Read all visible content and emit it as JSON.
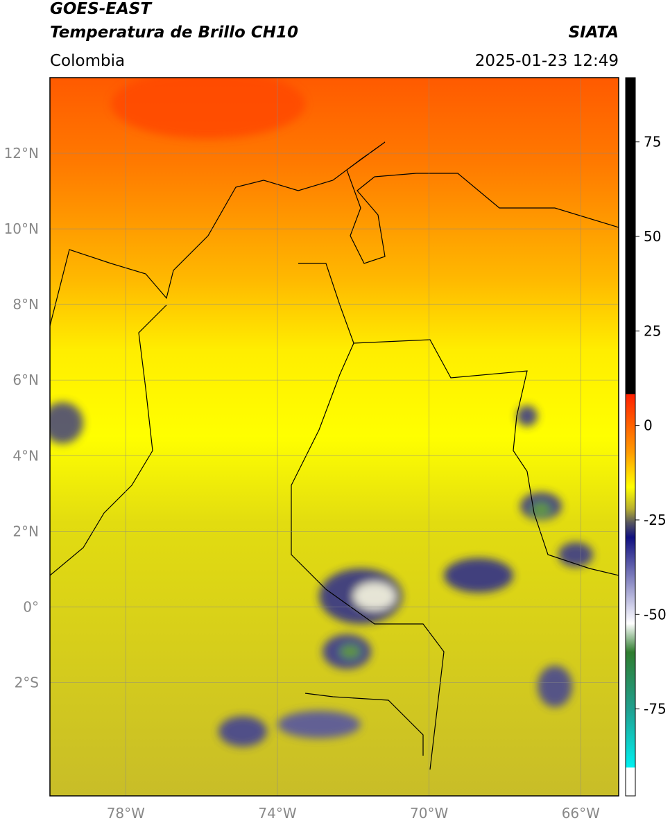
{
  "header": {
    "title": "GOES-EAST",
    "subtitle": "Temperatura de Brillo CH10",
    "source": "SIATA",
    "region": "Colombia",
    "datetime": "2025-01-23 12:49"
  },
  "map": {
    "lonlim": [
      -80,
      -65
    ],
    "latlim": [
      -5,
      14
    ],
    "lat_ticks": [
      {
        "value": 12,
        "label": "12°N"
      },
      {
        "value": 10,
        "label": "10°N"
      },
      {
        "value": 8,
        "label": "8°N"
      },
      {
        "value": 6,
        "label": "6°N"
      },
      {
        "value": 4,
        "label": "4°N"
      },
      {
        "value": 2,
        "label": "2°N"
      },
      {
        "value": 0,
        "label": "0°"
      },
      {
        "value": -2,
        "label": "2°S"
      }
    ],
    "lon_ticks": [
      {
        "value": -78,
        "label": "78°W"
      },
      {
        "value": -74,
        "label": "74°W"
      },
      {
        "value": -70,
        "label": "70°W"
      },
      {
        "value": -66,
        "label": "66°W"
      }
    ]
  },
  "colorbar": {
    "lim": [
      -98,
      92
    ],
    "ticks": [
      75,
      50,
      25,
      0,
      -25,
      -50,
      -75
    ]
  }
}
